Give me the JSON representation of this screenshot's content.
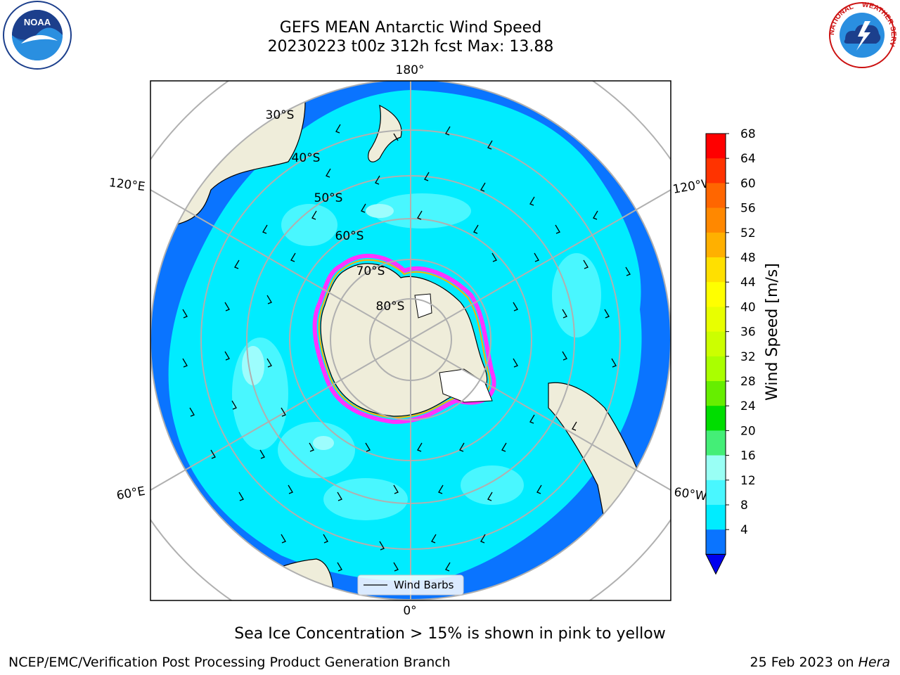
{
  "title": {
    "line1": "GEFS MEAN Antarctic Wind Speed",
    "line2": "20230223 t00z 312h fcst   Max: 13.88"
  },
  "map": {
    "projection": "south-polar-stereographic",
    "longitude_labels": [
      "180°",
      "120°E",
      "120°W",
      "60°E",
      "60°W",
      "0°"
    ],
    "latitude_labels": [
      "30°S",
      "40°S",
      "50°S",
      "60°S",
      "70°S",
      "80°S"
    ],
    "legend_label": "Wind Barbs",
    "colors": {
      "ocean_4_8": "#0a74ff",
      "ocean_8_12": "#00ecff",
      "ocean_12_16": "#49f7ff",
      "ocean_16_20": "#9dfdfd",
      "land": "#efedda",
      "sea_ice_edge": "#ff33ff",
      "sea_ice_inner": "#ffb000"
    }
  },
  "colorbar": {
    "label": "Wind Speed [m/s]",
    "ticks": [
      "68",
      "64",
      "60",
      "56",
      "52",
      "48",
      "44",
      "40",
      "36",
      "32",
      "28",
      "24",
      "20",
      "16",
      "12",
      "8",
      "4"
    ],
    "colors": [
      "#ff0000",
      "#ff3300",
      "#ff6600",
      "#ff8800",
      "#ffb000",
      "#ffe000",
      "#ffff00",
      "#e8ff00",
      "#ccff00",
      "#aaff00",
      "#66ee00",
      "#00dd00",
      "#44ee77",
      "#99fff5",
      "#49f7ff",
      "#00ecff",
      "#0a74ff"
    ],
    "extend_color": "#0000ee"
  },
  "footer": {
    "note": "Sea Ice Concentration > 15% is shown in pink to yellow",
    "org": "NCEP/EMC/Verification Post Processing Product Generation Branch",
    "date": "25 Feb 2023 on",
    "host": "Hera"
  },
  "logos": {
    "noaa": "NOAA",
    "nws_left": "NATIONAL",
    "nws_right": "WEATHER SERVICE"
  }
}
